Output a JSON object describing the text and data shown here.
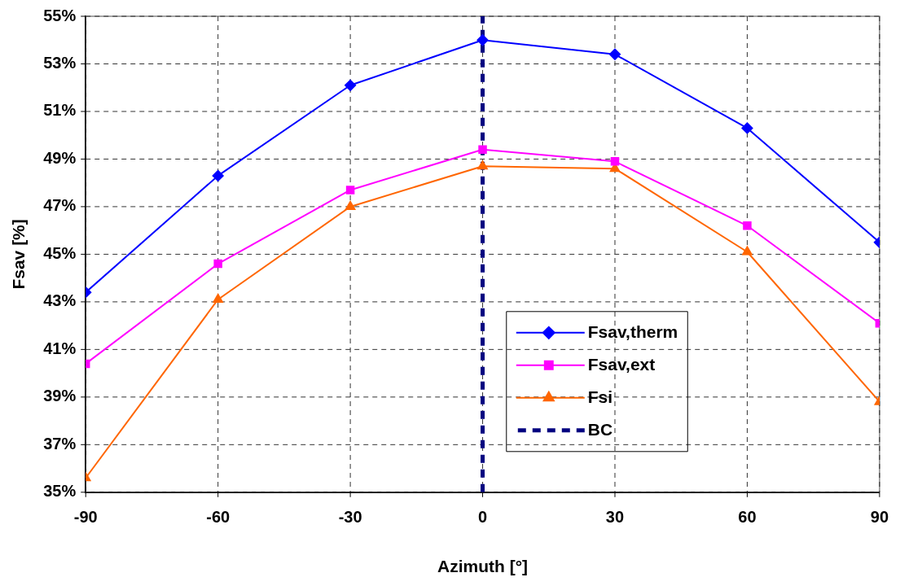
{
  "chart_data": {
    "type": "line",
    "xlabel": "Azimuth [°]",
    "ylabel": "Fsav [%]",
    "x": [
      -90,
      -60,
      -30,
      0,
      30,
      60,
      90
    ],
    "xlim": [
      -90,
      90
    ],
    "xticks": [
      -90,
      -60,
      -30,
      0,
      30,
      60,
      90
    ],
    "ylim": [
      35,
      55
    ],
    "yticks": [
      {
        "value": 35,
        "label": "35%"
      },
      {
        "value": 37,
        "label": "37%"
      },
      {
        "value": 39,
        "label": "39%"
      },
      {
        "value": 41,
        "label": "41%"
      },
      {
        "value": 43,
        "label": "43%"
      },
      {
        "value": 45,
        "label": "45%"
      },
      {
        "value": 47,
        "label": "47%"
      },
      {
        "value": 49,
        "label": "49%"
      },
      {
        "value": 51,
        "label": "51%"
      },
      {
        "value": 53,
        "label": "53%"
      },
      {
        "value": 55,
        "label": "55%"
      }
    ],
    "grid": true,
    "legend": "bottom right",
    "line_style": "solid",
    "series": [
      {
        "name": "Fsav,therm",
        "color": "#0000ff",
        "marker": "diamond",
        "values": [
          43.4,
          48.3,
          52.1,
          54.0,
          53.4,
          50.3,
          45.5
        ]
      },
      {
        "name": "Fsav,ext",
        "color": "#ff00ff",
        "marker": "square",
        "values": [
          40.4,
          44.6,
          47.7,
          49.4,
          48.9,
          46.2,
          42.1
        ]
      },
      {
        "name": "Fsi",
        "color": "#ff6600",
        "marker": "triangle",
        "values": [
          35.6,
          43.1,
          47.0,
          48.7,
          48.6,
          45.1,
          38.8
        ]
      },
      {
        "name": "BC",
        "color": "#000080",
        "marker": "none",
        "line_style": "dashed",
        "x": [
          0,
          0
        ],
        "values": [
          35,
          55
        ]
      }
    ]
  }
}
